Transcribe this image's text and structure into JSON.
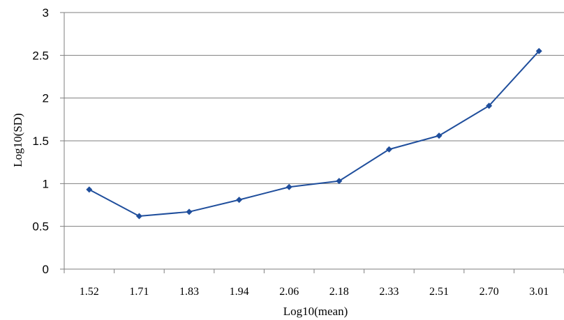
{
  "chart_data": {
    "type": "line",
    "title": "",
    "xlabel": "Log10(mean)",
    "ylabel": "Log10(SD)",
    "categories": [
      "1.52",
      "1.71",
      "1.83",
      "1.94",
      "2.06",
      "2.18",
      "2.33",
      "2.51",
      "2.70",
      "3.01"
    ],
    "series": [
      {
        "values": [
          0.93,
          0.62,
          0.67,
          0.81,
          0.96,
          1.03,
          1.4,
          1.56,
          1.91,
          2.55
        ]
      }
    ],
    "ylim": [
      0,
      3
    ],
    "yticks": [
      "0",
      "0.5",
      "1",
      "1.5",
      "2",
      "2.5",
      "3"
    ],
    "grid": "horizontal",
    "legend": "none",
    "colors": {
      "series": "#1f4e9c",
      "grid": "#7f7f7f",
      "axis": "#7f7f7f"
    }
  }
}
